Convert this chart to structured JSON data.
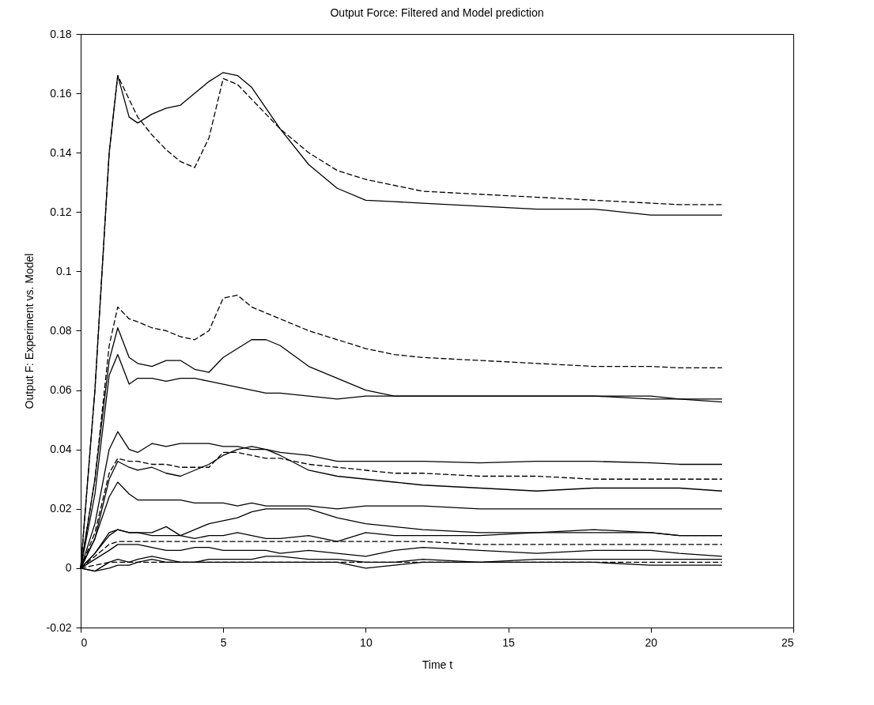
{
  "chart_data": {
    "type": "line",
    "title": "Output Force: Filtered and Model prediction",
    "xlabel": "Time t",
    "ylabel": "Output F: Experiment vs. Model",
    "xlim": [
      0,
      25
    ],
    "ylim": [
      -0.02,
      0.18
    ],
    "xticks": [
      0,
      5,
      10,
      15,
      20,
      25
    ],
    "yticks": [
      -0.02,
      0,
      0.02,
      0.04,
      0.06,
      0.08,
      0.1,
      0.12,
      0.14,
      0.16,
      0.18
    ],
    "grid": false,
    "legend": false,
    "marker": "none",
    "x": [
      0,
      0.5,
      1,
      1.3,
      1.7,
      2,
      2.5,
      3,
      3.5,
      4,
      4.5,
      5,
      5.5,
      6,
      6.5,
      7,
      8,
      9,
      10,
      11,
      12,
      14,
      16,
      18,
      20,
      21,
      22.5
    ],
    "series": [
      {
        "color": "#000000",
        "line_style": "solid",
        "values": [
          0,
          0.06,
          0.14,
          0.166,
          0.152,
          0.15,
          0.153,
          0.155,
          0.156,
          0.16,
          0.164,
          0.167,
          0.166,
          0.162,
          0.155,
          0.148,
          0.136,
          0.128,
          0.124,
          0.1235,
          0.123,
          0.122,
          0.121,
          0.121,
          0.119,
          0.119,
          0.119
        ]
      },
      {
        "color": "#000000",
        "line_style": "dashed",
        "values": [
          0,
          0.06,
          0.14,
          0.166,
          0.158,
          0.152,
          0.146,
          0.141,
          0.137,
          0.135,
          0.145,
          0.165,
          0.163,
          0.158,
          0.153,
          0.148,
          0.14,
          0.134,
          0.131,
          0.129,
          0.127,
          0.126,
          0.125,
          0.124,
          0.123,
          0.1225,
          0.1225
        ]
      },
      {
        "color": "#000000",
        "line_style": "dashed",
        "values": [
          0,
          0.03,
          0.075,
          0.088,
          0.084,
          0.083,
          0.081,
          0.08,
          0.078,
          0.077,
          0.08,
          0.091,
          0.092,
          0.088,
          0.086,
          0.084,
          0.08,
          0.077,
          0.074,
          0.072,
          0.071,
          0.07,
          0.069,
          0.068,
          0.068,
          0.0675,
          0.0675
        ]
      },
      {
        "color": "#000000",
        "line_style": "solid",
        "values": [
          0,
          0.03,
          0.07,
          0.081,
          0.071,
          0.069,
          0.068,
          0.07,
          0.07,
          0.067,
          0.066,
          0.071,
          0.074,
          0.077,
          0.077,
          0.075,
          0.068,
          0.064,
          0.06,
          0.058,
          0.058,
          0.058,
          0.058,
          0.058,
          0.057,
          0.057,
          0.057
        ]
      },
      {
        "color": "#000000",
        "line_style": "solid",
        "values": [
          0,
          0.025,
          0.065,
          0.072,
          0.062,
          0.064,
          0.064,
          0.063,
          0.064,
          0.064,
          0.063,
          0.062,
          0.061,
          0.06,
          0.059,
          0.059,
          0.058,
          0.057,
          0.058,
          0.058,
          0.058,
          0.058,
          0.058,
          0.058,
          0.058,
          0.057,
          0.056
        ]
      },
      {
        "color": "#000000",
        "line_style": "solid",
        "values": [
          0,
          0.015,
          0.04,
          0.046,
          0.04,
          0.039,
          0.042,
          0.041,
          0.042,
          0.042,
          0.042,
          0.041,
          0.041,
          0.04,
          0.04,
          0.039,
          0.038,
          0.036,
          0.036,
          0.036,
          0.036,
          0.0355,
          0.036,
          0.036,
          0.0355,
          0.035,
          0.035
        ]
      },
      {
        "color": "#000000",
        "line_style": "dashed",
        "values": [
          0,
          0.012,
          0.032,
          0.037,
          0.036,
          0.036,
          0.035,
          0.035,
          0.034,
          0.034,
          0.034,
          0.039,
          0.039,
          0.038,
          0.037,
          0.037,
          0.035,
          0.034,
          0.033,
          0.032,
          0.032,
          0.031,
          0.031,
          0.03,
          0.03,
          0.03,
          0.03
        ]
      },
      {
        "color": "#000000",
        "line_style": "solid",
        "values": [
          0,
          0.01,
          0.03,
          0.036,
          0.034,
          0.033,
          0.034,
          0.032,
          0.031,
          0.033,
          0.035,
          0.038,
          0.04,
          0.041,
          0.04,
          0.038,
          0.033,
          0.031,
          0.03,
          0.029,
          0.028,
          0.027,
          0.026,
          0.027,
          0.027,
          0.027,
          0.026
        ]
      },
      {
        "color": "#000000",
        "line_style": "solid",
        "values": [
          0,
          0.01,
          0.024,
          0.029,
          0.025,
          0.023,
          0.023,
          0.023,
          0.023,
          0.022,
          0.022,
          0.022,
          0.021,
          0.022,
          0.021,
          0.021,
          0.021,
          0.02,
          0.021,
          0.021,
          0.021,
          0.02,
          0.02,
          0.02,
          0.02,
          0.02,
          0.02
        ]
      },
      {
        "color": "#000000",
        "line_style": "solid",
        "values": [
          0,
          0.005,
          0.011,
          0.013,
          0.012,
          0.012,
          0.011,
          0.011,
          0.011,
          0.013,
          0.015,
          0.016,
          0.017,
          0.019,
          0.02,
          0.02,
          0.02,
          0.017,
          0.015,
          0.014,
          0.013,
          0.012,
          0.012,
          0.012,
          0.012,
          0.011,
          0.011
        ]
      },
      {
        "color": "#000000",
        "line_style": "dashed",
        "values": [
          0,
          0.004,
          0.008,
          0.009,
          0.009,
          0.009,
          0.009,
          0.009,
          0.009,
          0.009,
          0.009,
          0.009,
          0.009,
          0.009,
          0.009,
          0.009,
          0.009,
          0.009,
          0.009,
          0.009,
          0.009,
          0.008,
          0.008,
          0.008,
          0.008,
          0.008,
          0.008
        ]
      },
      {
        "color": "#000000",
        "line_style": "solid",
        "values": [
          0,
          0.005,
          0.012,
          0.013,
          0.012,
          0.012,
          0.012,
          0.014,
          0.011,
          0.01,
          0.011,
          0.011,
          0.012,
          0.011,
          0.01,
          0.01,
          0.011,
          0.009,
          0.012,
          0.011,
          0.011,
          0.011,
          0.012,
          0.013,
          0.012,
          0.011,
          0.011
        ]
      },
      {
        "color": "#000000",
        "line_style": "solid",
        "values": [
          0,
          0.003,
          0.006,
          0.008,
          0.008,
          0.008,
          0.007,
          0.006,
          0.006,
          0.007,
          0.007,
          0.006,
          0.006,
          0.006,
          0.006,
          0.005,
          0.006,
          0.005,
          0.004,
          0.006,
          0.007,
          0.006,
          0.005,
          0.006,
          0.006,
          0.005,
          0.004
        ]
      },
      {
        "color": "#000000",
        "line_style": "solid",
        "values": [
          0,
          -0.001,
          0.002,
          0.003,
          0.002,
          0.003,
          0.004,
          0.003,
          0.002,
          0.002,
          0.003,
          0.003,
          0.003,
          0.003,
          0.004,
          0.004,
          0.003,
          0.003,
          0.002,
          0.002,
          0.003,
          0.002,
          0.003,
          0.003,
          0.003,
          0.003,
          0.003
        ]
      },
      {
        "color": "#000000",
        "line_style": "dashed",
        "values": [
          0,
          0.001,
          0.002,
          0.002,
          0.002,
          0.002,
          0.002,
          0.002,
          0.002,
          0.002,
          0.002,
          0.002,
          0.002,
          0.002,
          0.002,
          0.002,
          0.002,
          0.002,
          0.002,
          0.002,
          0.002,
          0.002,
          0.002,
          0.002,
          0.002,
          0.002,
          0.002
        ]
      },
      {
        "color": "#000000",
        "line_style": "solid",
        "values": [
          0,
          -0.001,
          0,
          0.001,
          0.001,
          0.002,
          0.003,
          0.002,
          0.002,
          0.002,
          0.002,
          0.002,
          0.002,
          0.002,
          0.002,
          0.002,
          0.002,
          0.002,
          0,
          0.001,
          0.002,
          0.002,
          0.002,
          0.002,
          0.001,
          0.001,
          0.001
        ]
      }
    ]
  }
}
